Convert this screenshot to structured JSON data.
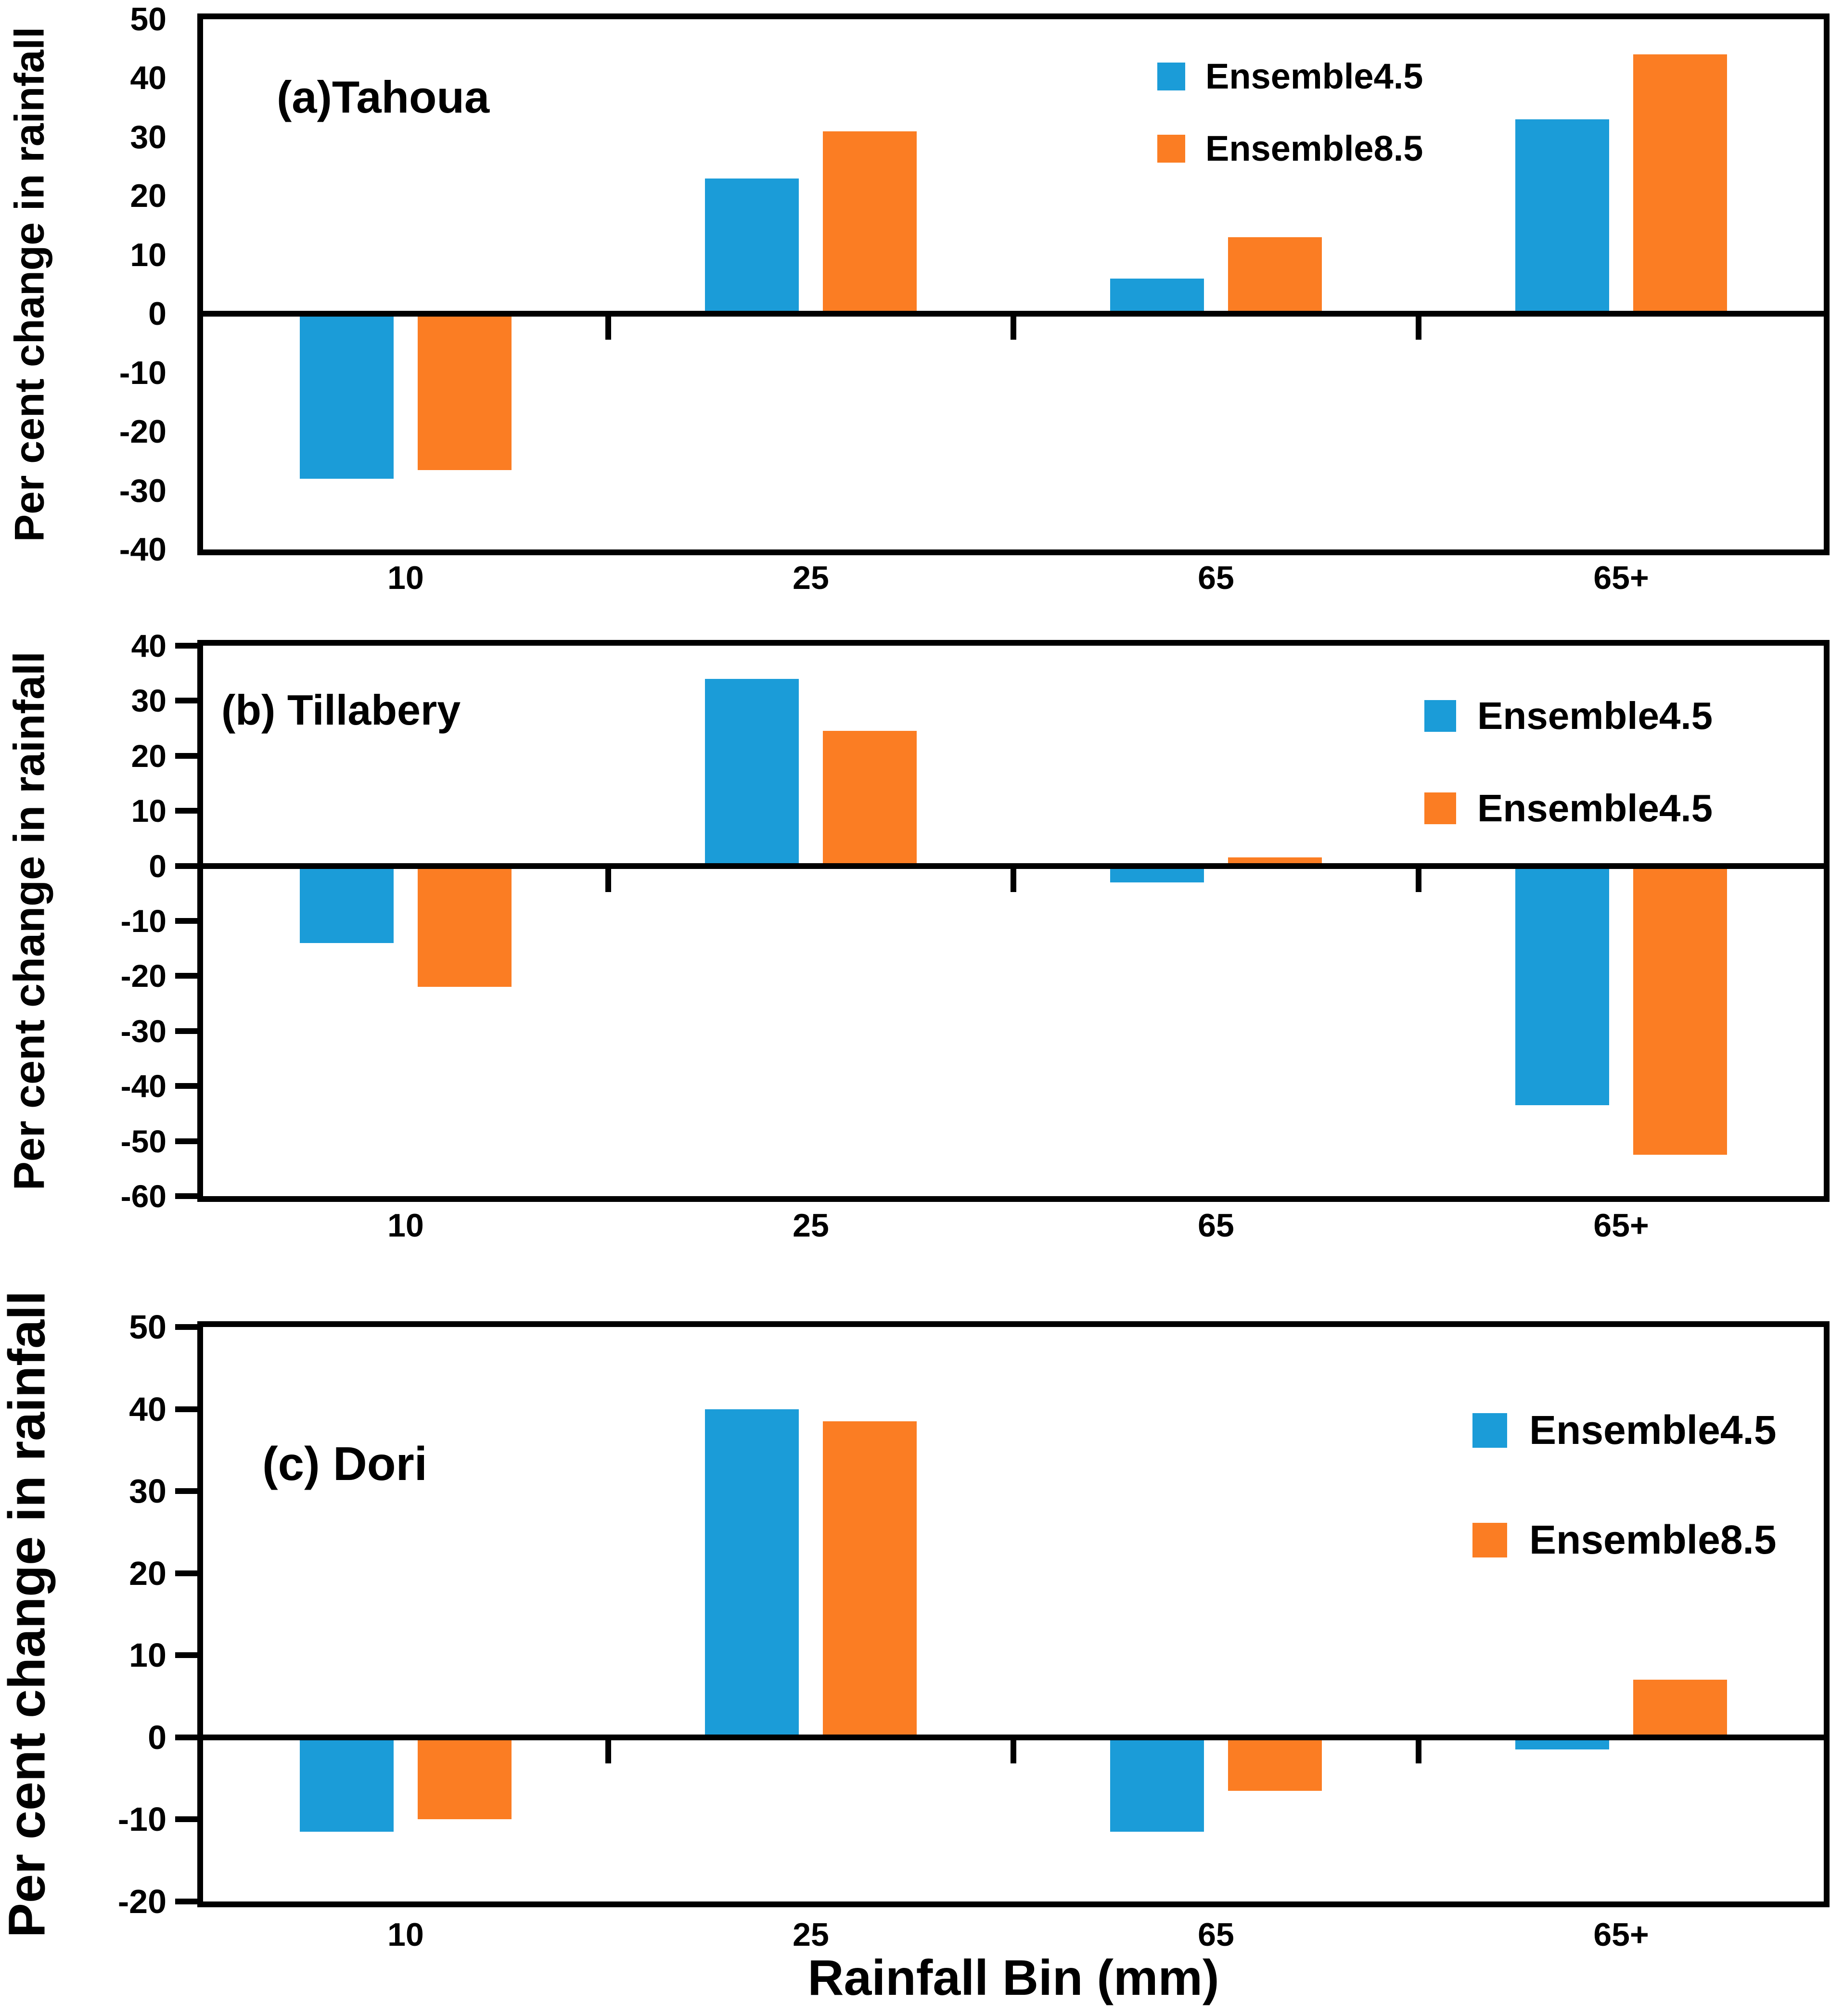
{
  "figure": {
    "xaxis_title": "Rainfall Bin (mm)",
    "background_color": "#ffffff",
    "axis_color": "#000000",
    "series_colors": {
      "ensemble45_blue": "#1B9CD8",
      "ensemble85_orange": "#FB7D23"
    }
  },
  "chart_data": [
    {
      "type": "bar",
      "panel_label": "(a)Tahoua",
      "ylabel": "Per cent change in rainfall",
      "xlabel": "",
      "categories": [
        "10",
        "25",
        "65",
        "65+"
      ],
      "series": [
        {
          "name": "Ensemble4.5",
          "color": "#1B9CD8",
          "values": [
            -28,
            23,
            6,
            33
          ]
        },
        {
          "name": "Ensemble8.5",
          "color": "#FB7D23",
          "values": [
            -26.5,
            31,
            13,
            44
          ]
        }
      ],
      "ylim": [
        -40,
        50
      ],
      "ytick_step": 10,
      "grid": false,
      "legend_position": "top-right-inside"
    },
    {
      "type": "bar",
      "panel_label": "(b) Tillabery",
      "ylabel": "Per cent change in rainfall",
      "xlabel": "",
      "categories": [
        "10",
        "25",
        "65",
        "65+"
      ],
      "series": [
        {
          "name": "Ensemble4.5",
          "color": "#1B9CD8",
          "values": [
            -14,
            34,
            -3,
            -43.5
          ]
        },
        {
          "name": "Ensemble4.5",
          "color": "#FB7D23",
          "values": [
            -22,
            24.5,
            1.5,
            -52.5
          ]
        }
      ],
      "ylim": [
        -60,
        40
      ],
      "ytick_step": 10,
      "grid": false,
      "legend_position": "top-right-inside"
    },
    {
      "type": "bar",
      "panel_label": "(c) Dori",
      "ylabel": "Per cent change in rainfall",
      "xlabel": "",
      "categories": [
        "10",
        "25",
        "65",
        "65+"
      ],
      "series": [
        {
          "name": "Ensemble4.5",
          "color": "#1B9CD8",
          "values": [
            -11.5,
            40,
            -11.5,
            -1.5
          ]
        },
        {
          "name": "Ensemble8.5",
          "color": "#FB7D23",
          "values": [
            -10,
            38.5,
            -6.5,
            7
          ]
        }
      ],
      "ylim": [
        -20,
        50
      ],
      "ytick_step": 10,
      "grid": false,
      "legend_position": "top-right-inside"
    }
  ]
}
